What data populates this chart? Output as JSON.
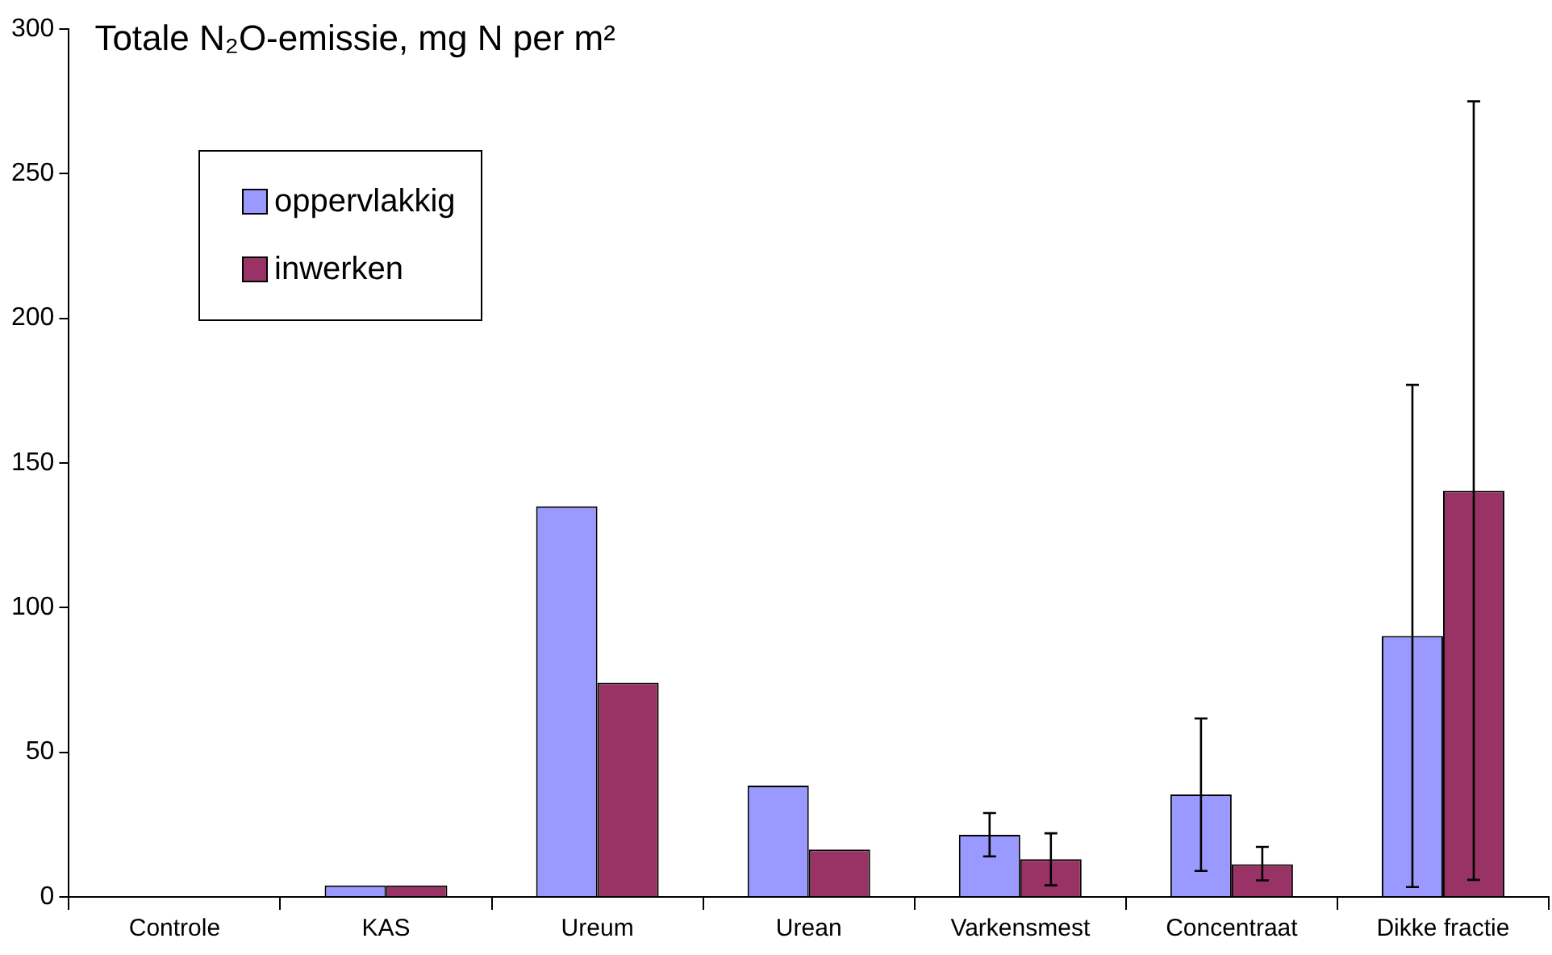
{
  "chart_data": {
    "type": "bar",
    "title": "Totale N₂O-emissie, mg N per m²",
    "categories": [
      "Controle",
      "KAS",
      "Ureum",
      "Urean",
      "Varkensmest",
      "Concentraat",
      "Dikke fractie"
    ],
    "series": [
      {
        "name": "oppervlakkig",
        "color": "#9999ff",
        "values": [
          null,
          4,
          135,
          38.5,
          21.5,
          35.4,
          90.2
        ],
        "errors": [
          null,
          null,
          null,
          null,
          [
            14,
            29
          ],
          [
            9,
            61.7
          ],
          [
            3.4,
            177
          ]
        ]
      },
      {
        "name": "inwerken",
        "color": "#993366",
        "values": [
          0,
          4,
          74,
          16.4,
          13,
          11.3,
          140.4
        ],
        "errors": [
          null,
          null,
          null,
          null,
          [
            4,
            22
          ],
          [
            5.7,
            17.3
          ],
          [
            5.9,
            275
          ]
        ]
      }
    ],
    "ylim": [
      0,
      300
    ],
    "yticks": [
      0,
      50,
      100,
      150,
      200,
      250,
      300
    ],
    "grid": false,
    "legend": "top left"
  }
}
